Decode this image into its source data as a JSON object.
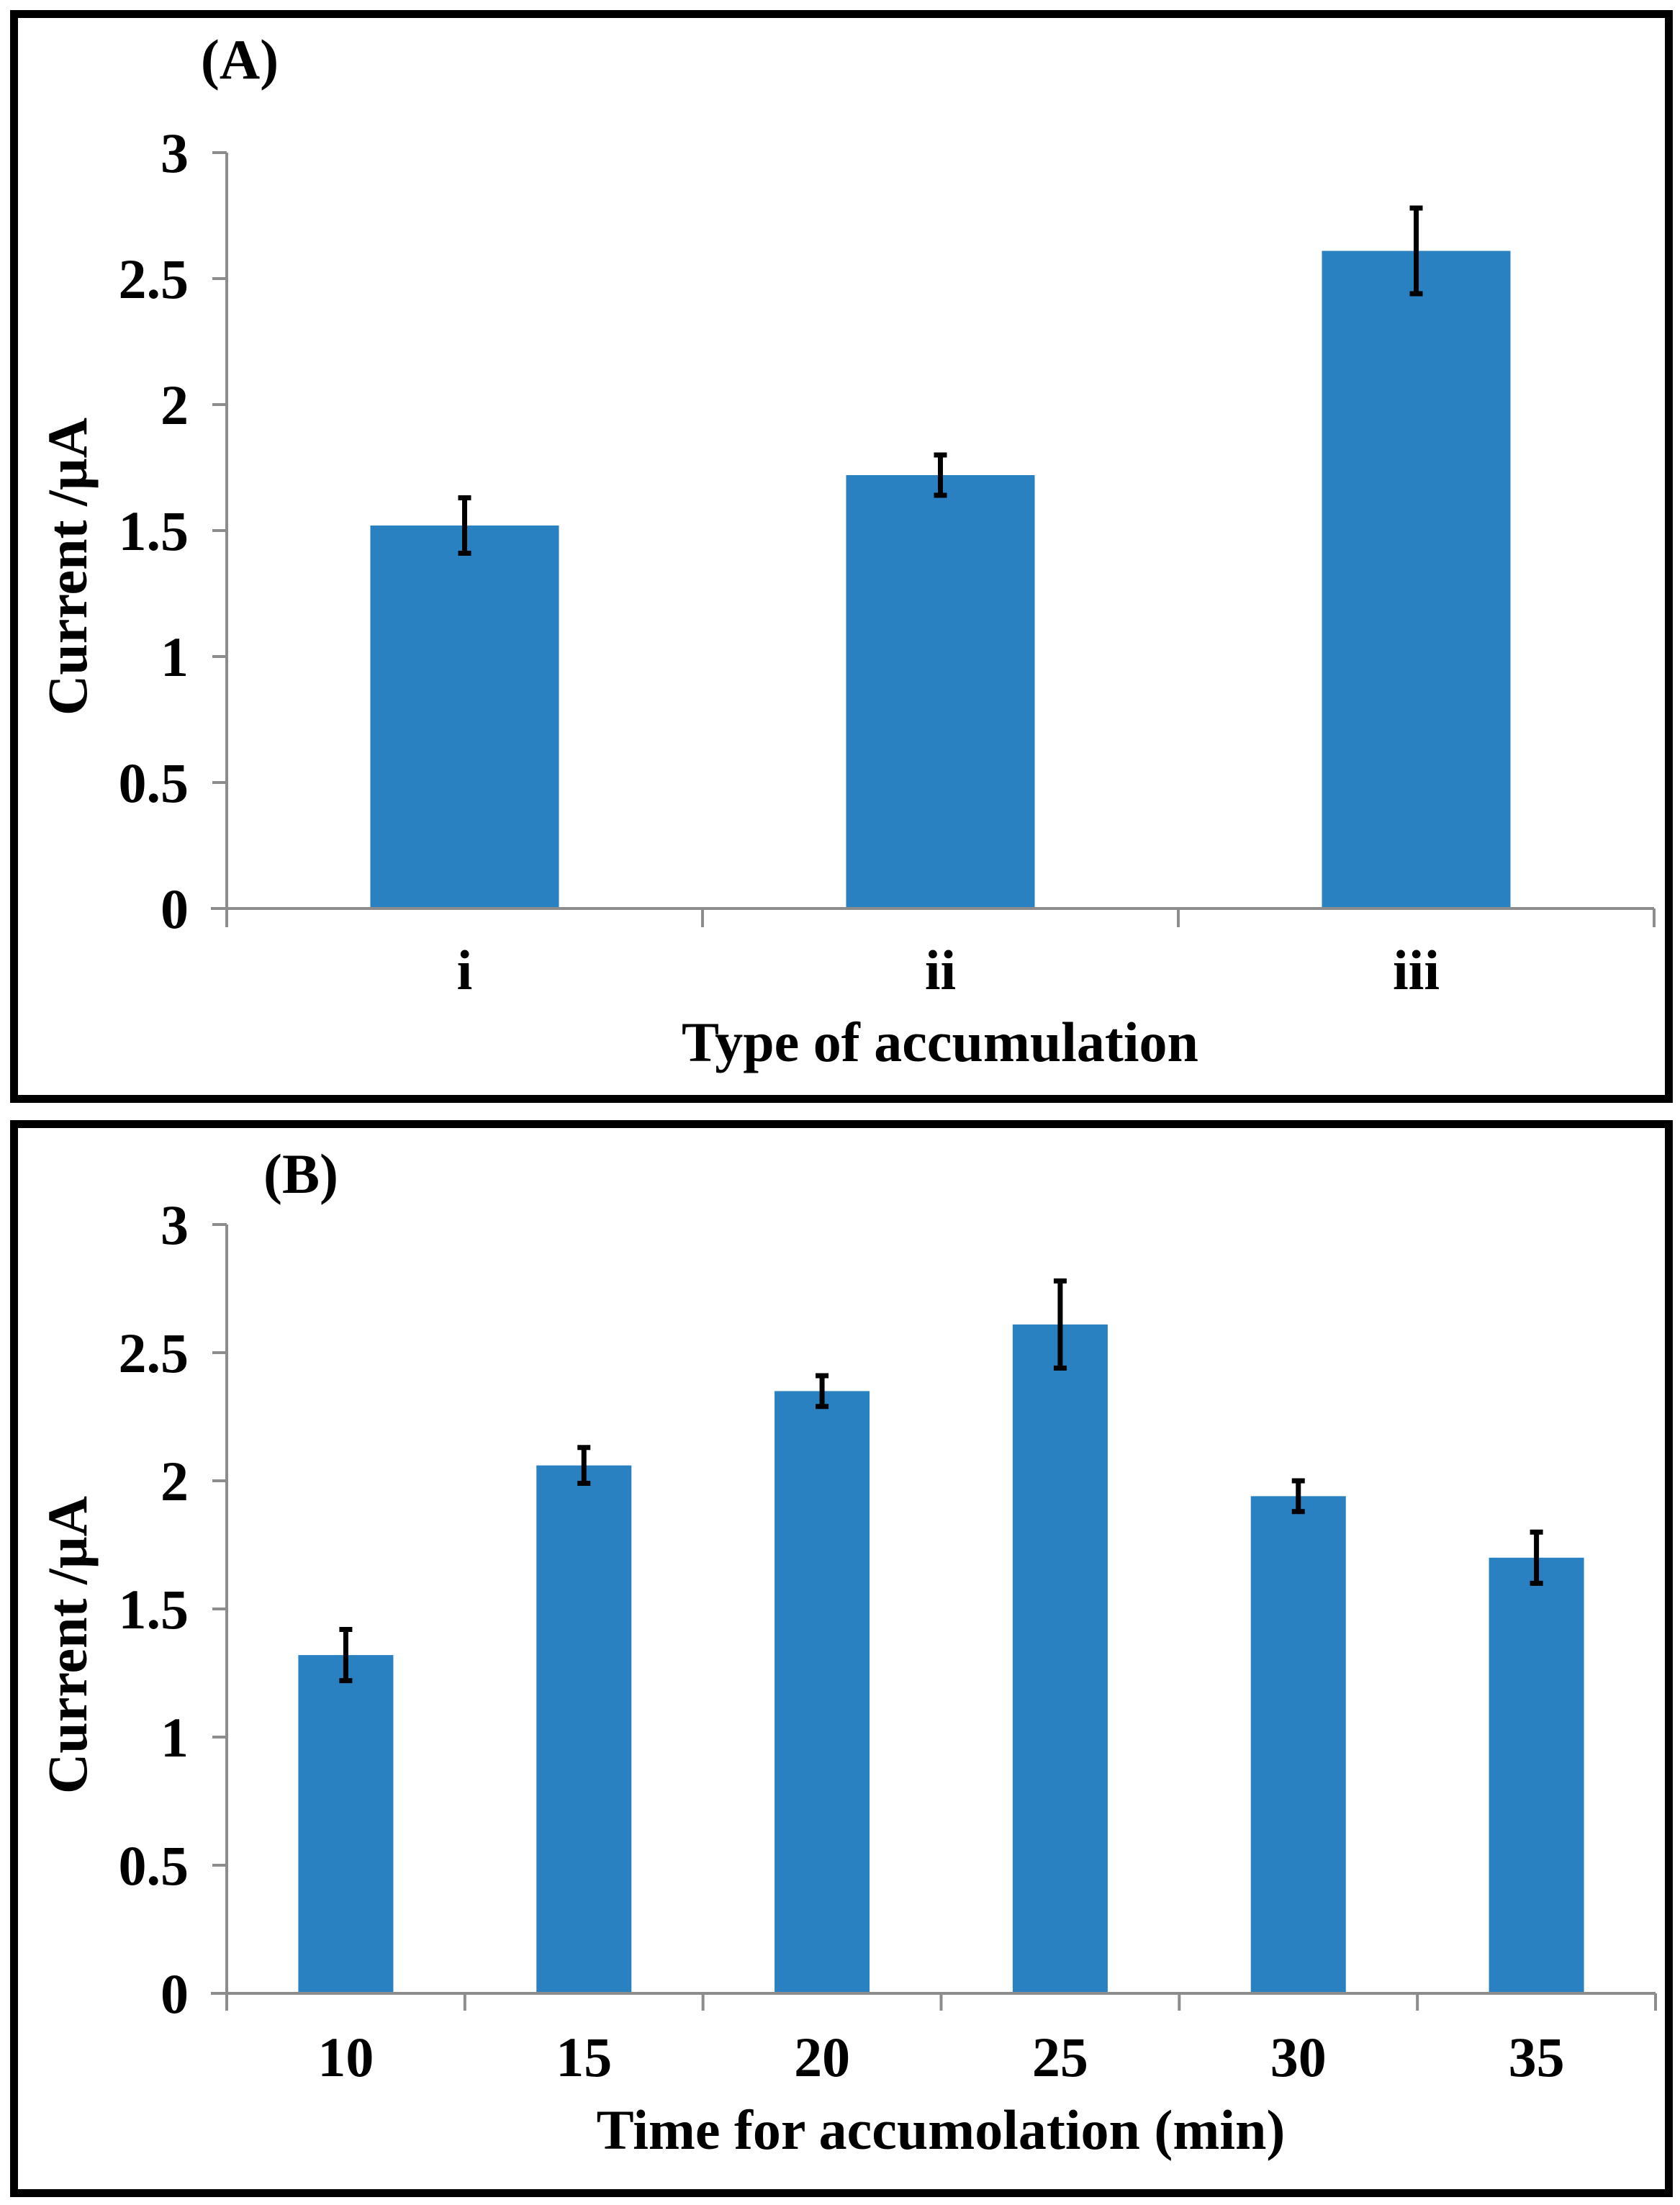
{
  "figure": {
    "background": "#ffffff",
    "border_color": "#000000",
    "panels": [
      {
        "label": "(A)"
      },
      {
        "label": "(B)"
      }
    ]
  },
  "chart_data": [
    {
      "type": "bar",
      "panel_label": "(A)",
      "categories": [
        "i",
        "ii",
        "iii"
      ],
      "values": [
        1.52,
        1.72,
        2.61
      ],
      "error_bars": [
        0.11,
        0.08,
        0.17
      ],
      "xlabel": "Type of accumulation",
      "ylabel": "Current /µA",
      "ylim": [
        0,
        3
      ],
      "ytick_values": [
        0,
        0.5,
        1,
        1.5,
        2,
        2.5,
        3
      ],
      "ytick_labels": [
        "0",
        "0.5",
        "1",
        "1.5",
        "2",
        "2.5",
        "3"
      ],
      "grid": false,
      "legend": null,
      "bar_color": "#2A81C2",
      "axis_color": "#8C8C8C",
      "error_bar_color": "#000000"
    },
    {
      "type": "bar",
      "panel_label": "(B)",
      "categories": [
        "10",
        "15",
        "20",
        "25",
        "30",
        "35"
      ],
      "values": [
        1.32,
        2.06,
        2.35,
        2.61,
        1.94,
        1.7
      ],
      "error_bars": [
        0.1,
        0.07,
        0.06,
        0.17,
        0.06,
        0.1
      ],
      "xlabel": "Time for accumolation (min)",
      "ylabel": "Current /µA",
      "ylim": [
        0,
        3
      ],
      "ytick_values": [
        0,
        0.5,
        1,
        1.5,
        2,
        2.5,
        3
      ],
      "ytick_labels": [
        "0",
        "0.5",
        "1",
        "1.5",
        "2",
        "2.5",
        "3"
      ],
      "grid": false,
      "legend": null,
      "bar_color": "#2A81C2",
      "axis_color": "#8C8C8C",
      "error_bar_color": "#000000"
    }
  ]
}
